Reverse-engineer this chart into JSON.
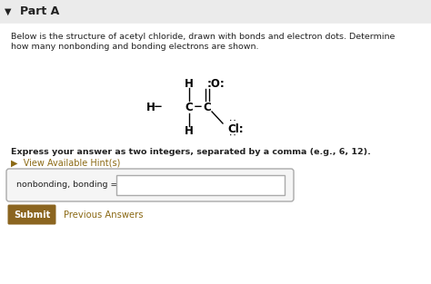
{
  "bg_color": "#f0f0f0",
  "bg_color_main": "#ffffff",
  "title": "Part A",
  "body_text_line1": "Below is the structure of acetyl chloride, drawn with bonds and electron dots. Determine",
  "body_text_line2": "how many nonbonding and bonding electrons are shown.",
  "express_text": "Express your answer as two integers, separated by a comma (e.g., 6, 12).",
  "hint_text": "▶  View Available Hint(s)",
  "hint_color": "#8B6914",
  "label_text": "nonbonding, bonding =",
  "submit_text": "Submit",
  "submit_bg": "#8B6520",
  "prev_answers_text": "Previous Answers",
  "prev_answers_color": "#8B6914",
  "triangle_color": "#222222",
  "text_color": "#222222",
  "border_color": "#aaaaaa",
  "header_color": "#ebebeb"
}
